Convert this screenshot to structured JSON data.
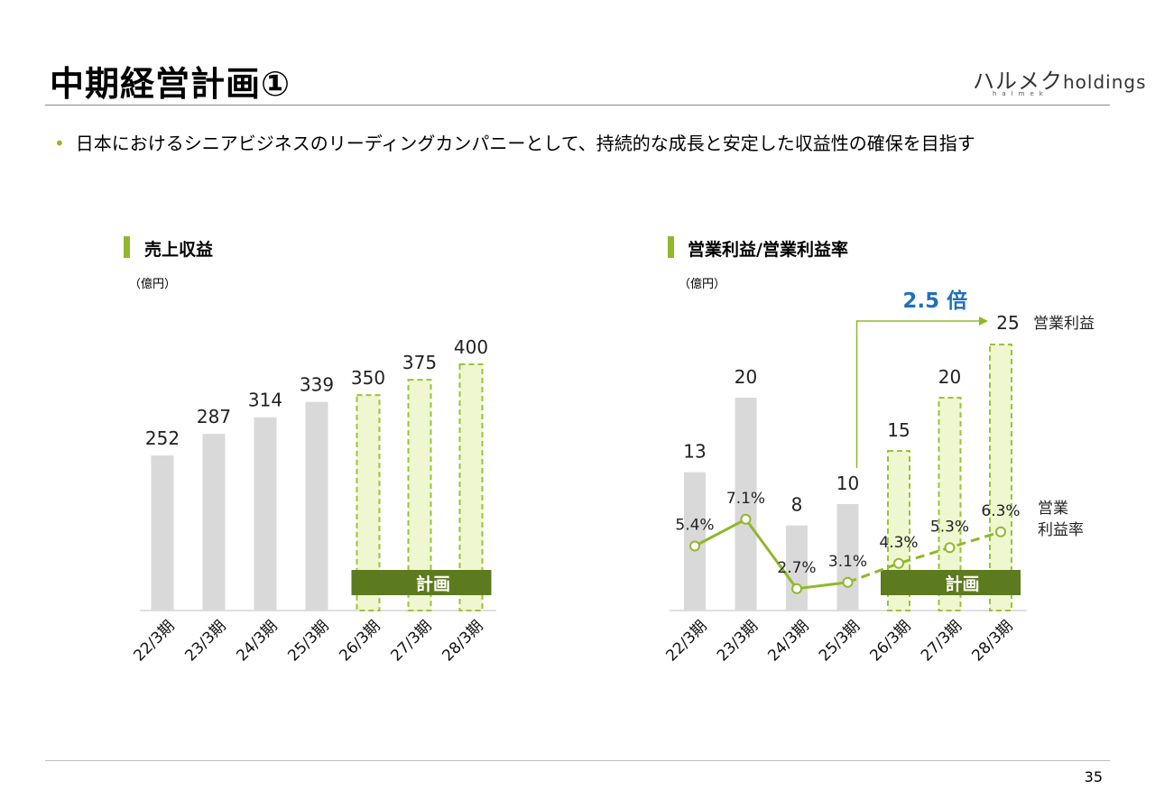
{
  "page": {
    "title": "中期経営計画①",
    "logo_main": "ハルメク",
    "logo_suffix": "holdings",
    "logo_sub": "halmek",
    "bullet": "日本におけるシニアビジネスのリーディングカンパニーとして、持続的な成長と安定した収益性の確保を目指す",
    "page_number": "35"
  },
  "colors": {
    "accent_green": "#8fb82a",
    "actual_bar": "#d9d9d9",
    "plan_fill": "#eef7cf",
    "plan_stroke": "#9cc23a",
    "plan_badge": "#5c7a1e",
    "highlight_blue": "#1f72b8"
  },
  "chart_data": [
    {
      "type": "bar",
      "title": "売上収益",
      "unit_label": "（億円）",
      "categories": [
        "22/3期",
        "23/3期",
        "24/3期",
        "25/3期",
        "26/3期",
        "27/3期",
        "28/3期"
      ],
      "values": [
        252,
        287,
        314,
        339,
        350,
        375,
        400
      ],
      "plan_start_index": 4,
      "plan_label": "計画",
      "ylim": [
        0,
        400
      ]
    },
    {
      "type": "bar+line",
      "title": "営業利益/営業利益率",
      "unit_label": "（億円）",
      "categories": [
        "22/3期",
        "23/3期",
        "24/3期",
        "25/3期",
        "26/3期",
        "27/3期",
        "28/3期"
      ],
      "series": [
        {
          "name": "営業利益",
          "values": [
            13,
            20,
            8,
            10,
            15,
            20,
            25
          ]
        },
        {
          "name": "営業\n利益率",
          "values": [
            5.4,
            7.1,
            2.7,
            3.1,
            4.3,
            5.3,
            6.3
          ],
          "labels": [
            "5.4%",
            "7.1%",
            "2.7%",
            "3.1%",
            "4.3%",
            "5.3%",
            "6.3%"
          ]
        }
      ],
      "plan_start_index": 4,
      "plan_label": "計画",
      "ylim": [
        0,
        25
      ],
      "annotation": {
        "text": "2.5 倍",
        "from_index": 3,
        "to_index": 6
      },
      "legend_profit": "営業利益",
      "legend_margin_1": "営業",
      "legend_margin_2": "利益率"
    }
  ]
}
